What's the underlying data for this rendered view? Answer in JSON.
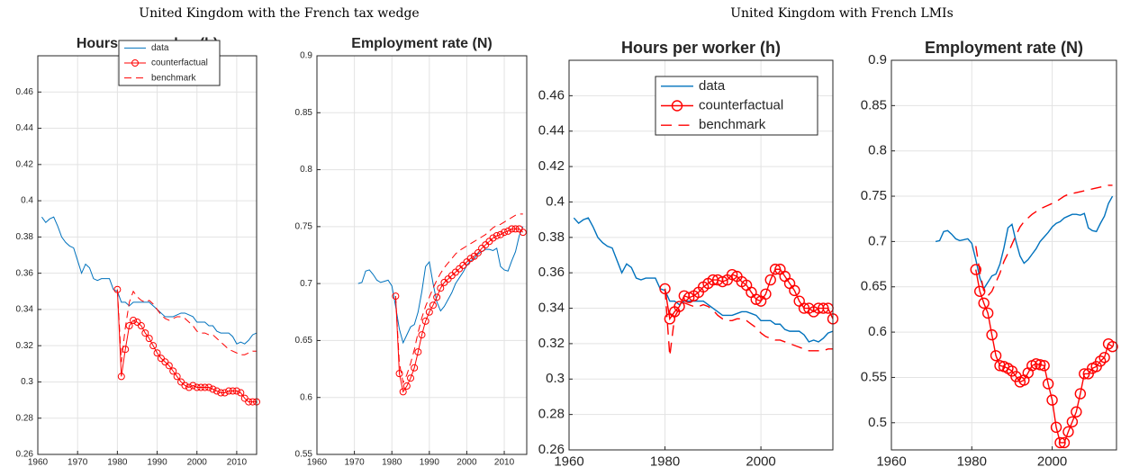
{
  "group_titles": [
    "United Kingdom with the French tax wedge",
    "United Kingdom with French LMIs"
  ],
  "chart_data": [
    {
      "type": "line",
      "title": "Hours per worker (h)",
      "legend": true,
      "legend_position": "top-right",
      "grid": true,
      "xlim": [
        1960,
        2015
      ],
      "xticks": [
        1960,
        1970,
        1980,
        1990,
        2000,
        2010
      ],
      "ylim": [
        0.26,
        0.48
      ],
      "yticks": [
        0.26,
        0.28,
        0.3,
        0.32,
        0.34,
        0.36,
        0.38,
        0.4,
        0.42,
        0.44,
        0.46
      ],
      "x": [
        1961,
        1962,
        1963,
        1964,
        1965,
        1966,
        1967,
        1968,
        1969,
        1970,
        1971,
        1972,
        1973,
        1974,
        1975,
        1976,
        1977,
        1978,
        1979,
        1980,
        1981,
        1982,
        1983,
        1984,
        1985,
        1986,
        1987,
        1988,
        1989,
        1990,
        1991,
        1992,
        1993,
        1994,
        1995,
        1996,
        1997,
        1998,
        1999,
        2000,
        2001,
        2002,
        2003,
        2004,
        2005,
        2006,
        2007,
        2008,
        2009,
        2010,
        2011,
        2012,
        2013,
        2014,
        2015
      ],
      "series": [
        {
          "name": "data",
          "color": "#0072bd",
          "style": "solid",
          "marker": "none",
          "values": [
            0.391,
            0.388,
            0.39,
            0.391,
            0.386,
            0.38,
            0.377,
            0.375,
            0.374,
            0.367,
            0.36,
            0.365,
            0.363,
            0.357,
            0.356,
            0.357,
            0.357,
            0.357,
            0.351,
            0.35,
            0.344,
            0.344,
            0.342,
            0.344,
            0.344,
            0.344,
            0.344,
            0.344,
            0.342,
            0.34,
            0.338,
            0.336,
            0.336,
            0.336,
            0.337,
            0.338,
            0.338,
            0.337,
            0.336,
            0.333,
            0.333,
            0.333,
            0.331,
            0.331,
            0.328,
            0.327,
            0.327,
            0.327,
            0.325,
            0.321,
            0.322,
            0.321,
            0.323,
            0.326,
            0.327
          ]
        },
        {
          "name": "counterfactual",
          "color": "#ff0000",
          "style": "solid",
          "marker": "circle",
          "values": [
            null,
            null,
            null,
            null,
            null,
            null,
            null,
            null,
            null,
            null,
            null,
            null,
            null,
            null,
            null,
            null,
            null,
            null,
            null,
            0.351,
            0.303,
            0.318,
            0.331,
            0.334,
            0.333,
            0.331,
            0.327,
            0.324,
            0.32,
            0.316,
            0.313,
            0.311,
            0.309,
            0.306,
            0.303,
            0.3,
            0.298,
            0.297,
            0.298,
            0.297,
            0.297,
            0.297,
            0.297,
            0.296,
            0.295,
            0.294,
            0.294,
            0.295,
            0.295,
            0.295,
            0.294,
            0.291,
            0.289,
            0.289,
            0.289
          ]
        },
        {
          "name": "benchmark",
          "color": "#ff0000",
          "style": "dash",
          "marker": "none",
          "values": [
            null,
            null,
            null,
            null,
            null,
            null,
            null,
            null,
            null,
            null,
            null,
            null,
            null,
            null,
            null,
            null,
            null,
            null,
            null,
            0.351,
            0.311,
            0.33,
            0.344,
            0.35,
            0.347,
            0.345,
            0.344,
            0.345,
            0.343,
            0.34,
            0.337,
            0.335,
            0.334,
            0.335,
            0.336,
            0.336,
            0.335,
            0.333,
            0.331,
            0.328,
            0.327,
            0.327,
            0.326,
            0.326,
            0.324,
            0.322,
            0.32,
            0.318,
            0.317,
            0.316,
            0.315,
            0.315,
            0.316,
            0.317,
            0.317
          ]
        }
      ]
    },
    {
      "type": "line",
      "title": "Employment rate (N)",
      "legend": false,
      "grid": true,
      "xlim": [
        1960,
        2016
      ],
      "xticks": [
        1960,
        1970,
        1980,
        1990,
        2000,
        2010
      ],
      "ylim": [
        0.55,
        0.9
      ],
      "yticks": [
        0.55,
        0.6,
        0.65,
        0.7,
        0.75,
        0.8,
        0.85,
        0.9
      ],
      "x": [
        1961,
        1962,
        1963,
        1964,
        1965,
        1966,
        1967,
        1968,
        1969,
        1970,
        1971,
        1972,
        1973,
        1974,
        1975,
        1976,
        1977,
        1978,
        1979,
        1980,
        1981,
        1982,
        1983,
        1984,
        1985,
        1986,
        1987,
        1988,
        1989,
        1990,
        1991,
        1992,
        1993,
        1994,
        1995,
        1996,
        1997,
        1998,
        1999,
        2000,
        2001,
        2002,
        2003,
        2004,
        2005,
        2006,
        2007,
        2008,
        2009,
        2010,
        2011,
        2012,
        2013,
        2014,
        2015
      ],
      "series": [
        {
          "name": "data",
          "color": "#0072bd",
          "style": "solid",
          "marker": "none",
          "values": [
            null,
            null,
            null,
            null,
            null,
            null,
            null,
            null,
            null,
            null,
            0.7,
            0.701,
            0.711,
            0.712,
            0.708,
            0.703,
            0.701,
            0.702,
            0.703,
            0.698,
            0.68,
            0.66,
            0.648,
            0.655,
            0.662,
            0.664,
            0.675,
            0.693,
            0.715,
            0.719,
            0.7,
            0.684,
            0.676,
            0.68,
            0.686,
            0.692,
            0.7,
            0.705,
            0.71,
            0.716,
            0.72,
            0.722,
            0.726,
            0.728,
            0.73,
            0.73,
            0.729,
            0.731,
            0.715,
            0.712,
            0.711,
            0.72,
            0.728,
            0.742,
            0.75
          ]
        },
        {
          "name": "counterfactual",
          "color": "#ff0000",
          "style": "solid",
          "marker": "circle",
          "values": [
            null,
            null,
            null,
            null,
            null,
            null,
            null,
            null,
            null,
            null,
            null,
            null,
            null,
            null,
            null,
            null,
            null,
            null,
            null,
            null,
            0.689,
            0.621,
            0.605,
            0.61,
            0.617,
            0.626,
            0.64,
            0.655,
            0.667,
            0.675,
            0.681,
            0.688,
            0.696,
            0.701,
            0.704,
            0.707,
            0.71,
            0.713,
            0.716,
            0.719,
            0.722,
            0.724,
            0.727,
            0.731,
            0.734,
            0.737,
            0.74,
            0.742,
            0.743,
            0.745,
            0.746,
            0.748,
            0.748,
            0.748,
            0.745
          ]
        },
        {
          "name": "benchmark",
          "color": "#ff0000",
          "style": "dash",
          "marker": "none",
          "values": [
            null,
            null,
            null,
            null,
            null,
            null,
            null,
            null,
            null,
            null,
            null,
            null,
            null,
            null,
            null,
            null,
            null,
            null,
            null,
            null,
            0.689,
            0.63,
            0.613,
            0.62,
            0.63,
            0.642,
            0.657,
            0.67,
            0.68,
            0.688,
            0.696,
            0.703,
            0.709,
            0.714,
            0.718,
            0.722,
            0.726,
            0.729,
            0.731,
            0.733,
            0.735,
            0.737,
            0.739,
            0.741,
            0.743,
            0.746,
            0.749,
            0.751,
            0.752,
            0.754,
            0.756,
            0.758,
            0.76,
            0.761,
            0.761
          ]
        }
      ]
    },
    {
      "type": "line",
      "title": "Hours per worker (h)",
      "legend": true,
      "legend_position": "top",
      "grid": true,
      "xlim": [
        1960,
        2015
      ],
      "xticks": [
        1960,
        1980,
        2000
      ],
      "ylim": [
        0.26,
        0.48
      ],
      "yticks": [
        0.26,
        0.28,
        0.3,
        0.32,
        0.34,
        0.36,
        0.38,
        0.4,
        0.42,
        0.44,
        0.46
      ],
      "x": [
        1961,
        1962,
        1963,
        1964,
        1965,
        1966,
        1967,
        1968,
        1969,
        1970,
        1971,
        1972,
        1973,
        1974,
        1975,
        1976,
        1977,
        1978,
        1979,
        1980,
        1981,
        1982,
        1983,
        1984,
        1985,
        1986,
        1987,
        1988,
        1989,
        1990,
        1991,
        1992,
        1993,
        1994,
        1995,
        1996,
        1997,
        1998,
        1999,
        2000,
        2001,
        2002,
        2003,
        2004,
        2005,
        2006,
        2007,
        2008,
        2009,
        2010,
        2011,
        2012,
        2013,
        2014,
        2015
      ],
      "series": [
        {
          "name": "data",
          "color": "#0072bd",
          "style": "solid",
          "marker": "none",
          "values": [
            0.391,
            0.388,
            0.39,
            0.391,
            0.386,
            0.38,
            0.377,
            0.375,
            0.374,
            0.367,
            0.36,
            0.365,
            0.363,
            0.357,
            0.356,
            0.357,
            0.357,
            0.357,
            0.351,
            0.35,
            0.344,
            0.344,
            0.342,
            0.344,
            0.344,
            0.344,
            0.344,
            0.344,
            0.342,
            0.34,
            0.338,
            0.336,
            0.336,
            0.336,
            0.337,
            0.338,
            0.338,
            0.337,
            0.336,
            0.333,
            0.333,
            0.333,
            0.331,
            0.331,
            0.328,
            0.327,
            0.327,
            0.327,
            0.325,
            0.321,
            0.322,
            0.321,
            0.323,
            0.326,
            0.327
          ]
        },
        {
          "name": "counterfactual",
          "color": "#ff0000",
          "style": "solid",
          "marker": "circle",
          "values": [
            null,
            null,
            null,
            null,
            null,
            null,
            null,
            null,
            null,
            null,
            null,
            null,
            null,
            null,
            null,
            null,
            null,
            null,
            null,
            0.351,
            0.334,
            0.338,
            0.341,
            0.347,
            0.346,
            0.347,
            0.349,
            0.352,
            0.354,
            0.356,
            0.356,
            0.355,
            0.356,
            0.359,
            0.358,
            0.355,
            0.353,
            0.349,
            0.345,
            0.344,
            0.348,
            0.356,
            0.362,
            0.362,
            0.358,
            0.354,
            0.35,
            0.344,
            0.34,
            0.34,
            0.338,
            0.34,
            0.34,
            0.34,
            0.334
          ]
        },
        {
          "name": "benchmark",
          "color": "#ff0000",
          "style": "dash",
          "marker": "none",
          "values": [
            null,
            null,
            null,
            null,
            null,
            null,
            null,
            null,
            null,
            null,
            null,
            null,
            null,
            null,
            null,
            null,
            null,
            null,
            null,
            0.351,
            0.313,
            0.335,
            0.34,
            0.343,
            0.342,
            0.341,
            0.341,
            0.342,
            0.341,
            0.339,
            0.336,
            0.334,
            0.333,
            0.333,
            0.334,
            0.334,
            0.333,
            0.331,
            0.329,
            0.326,
            0.324,
            0.323,
            0.322,
            0.322,
            0.321,
            0.32,
            0.319,
            0.318,
            0.317,
            0.316,
            0.316,
            0.316,
            0.316,
            0.317,
            0.317
          ]
        }
      ]
    },
    {
      "type": "line",
      "title": "Employment rate (N)",
      "legend": false,
      "grid": true,
      "xlim": [
        1960,
        2016
      ],
      "xticks": [
        1960,
        1980,
        2000
      ],
      "ylim": [
        0.47,
        0.9
      ],
      "yticks": [
        0.5,
        0.55,
        0.6,
        0.65,
        0.7,
        0.75,
        0.8,
        0.85,
        0.9
      ],
      "x": [
        1961,
        1962,
        1963,
        1964,
        1965,
        1966,
        1967,
        1968,
        1969,
        1970,
        1971,
        1972,
        1973,
        1974,
        1975,
        1976,
        1977,
        1978,
        1979,
        1980,
        1981,
        1982,
        1983,
        1984,
        1985,
        1986,
        1987,
        1988,
        1989,
        1990,
        1991,
        1992,
        1993,
        1994,
        1995,
        1996,
        1997,
        1998,
        1999,
        2000,
        2001,
        2002,
        2003,
        2004,
        2005,
        2006,
        2007,
        2008,
        2009,
        2010,
        2011,
        2012,
        2013,
        2014,
        2015
      ],
      "series": [
        {
          "name": "data",
          "color": "#0072bd",
          "style": "solid",
          "marker": "none",
          "values": [
            null,
            null,
            null,
            null,
            null,
            null,
            null,
            null,
            null,
            null,
            0.7,
            0.701,
            0.711,
            0.712,
            0.708,
            0.703,
            0.701,
            0.702,
            0.703,
            0.698,
            0.68,
            0.66,
            0.648,
            0.655,
            0.662,
            0.664,
            0.675,
            0.693,
            0.715,
            0.719,
            0.7,
            0.684,
            0.676,
            0.68,
            0.686,
            0.692,
            0.7,
            0.705,
            0.71,
            0.716,
            0.72,
            0.722,
            0.726,
            0.728,
            0.73,
            0.73,
            0.729,
            0.731,
            0.715,
            0.712,
            0.711,
            0.72,
            0.728,
            0.742,
            0.75
          ]
        },
        {
          "name": "counterfactual",
          "color": "#ff0000",
          "style": "solid",
          "marker": "circle",
          "values": [
            null,
            null,
            null,
            null,
            null,
            null,
            null,
            null,
            null,
            null,
            null,
            null,
            null,
            null,
            null,
            null,
            null,
            null,
            null,
            null,
            0.669,
            0.645,
            0.632,
            0.621,
            0.597,
            0.574,
            0.563,
            0.562,
            0.56,
            0.557,
            0.551,
            0.545,
            0.547,
            0.555,
            0.563,
            0.565,
            0.564,
            0.563,
            0.543,
            0.525,
            0.495,
            0.478,
            0.478,
            0.49,
            0.501,
            0.512,
            0.532,
            0.554,
            0.554,
            0.56,
            0.562,
            0.568,
            0.572,
            0.587,
            0.584
          ]
        },
        {
          "name": "benchmark",
          "color": "#ff0000",
          "style": "dash",
          "marker": "none",
          "values": [
            null,
            null,
            null,
            null,
            null,
            null,
            null,
            null,
            null,
            null,
            null,
            null,
            null,
            null,
            null,
            null,
            null,
            null,
            null,
            null,
            0.695,
            0.667,
            0.645,
            0.64,
            0.645,
            0.655,
            0.665,
            0.678,
            0.687,
            0.697,
            0.707,
            0.716,
            0.722,
            0.726,
            0.73,
            0.733,
            0.736,
            0.738,
            0.74,
            0.742,
            0.744,
            0.747,
            0.75,
            0.752,
            0.753,
            0.754,
            0.755,
            0.756,
            0.757,
            0.758,
            0.759,
            0.76,
            0.761,
            0.762,
            0.762
          ]
        }
      ]
    }
  ]
}
